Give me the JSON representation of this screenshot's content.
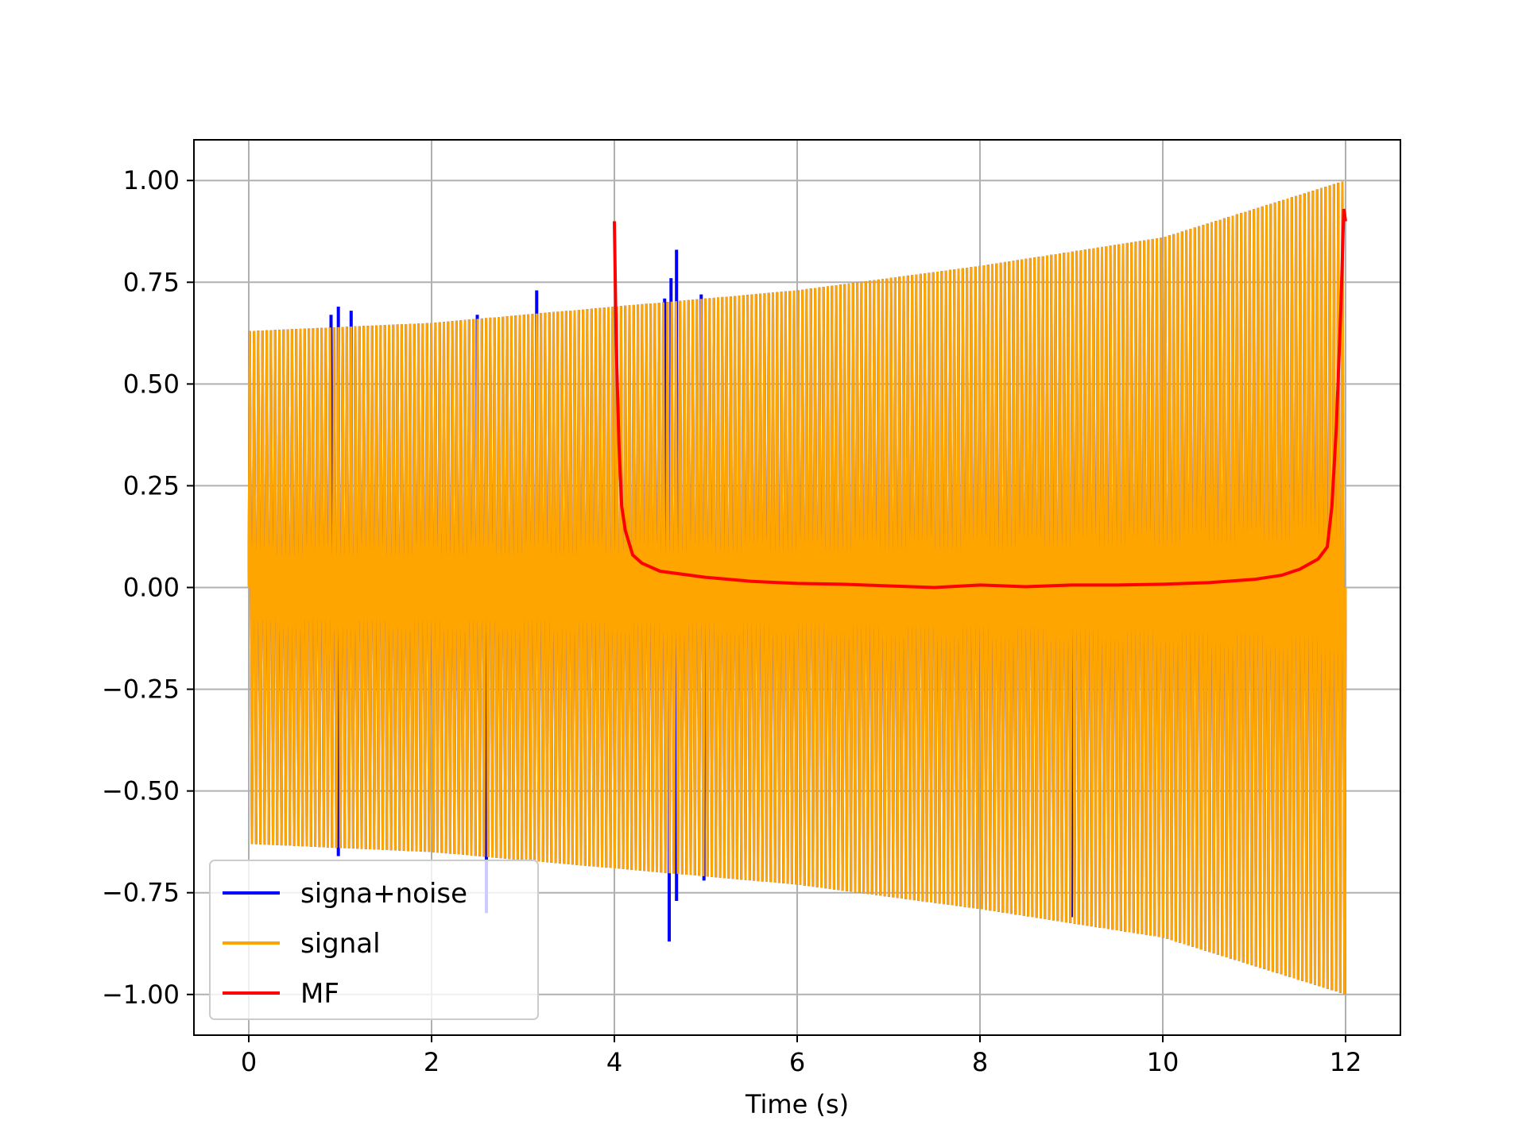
{
  "chart_data": {
    "type": "line",
    "title": "",
    "xlabel": "Time (s)",
    "ylabel": "",
    "xlim": [
      -0.6,
      12.6
    ],
    "ylim": [
      -1.1,
      1.1
    ],
    "xticks": [
      0,
      2,
      4,
      6,
      8,
      10,
      12
    ],
    "xtick_labels": [
      "0",
      "2",
      "4",
      "6",
      "8",
      "10",
      "12"
    ],
    "yticks": [
      1.0,
      0.75,
      0.5,
      0.25,
      0.0,
      -0.25,
      -0.5,
      -0.75,
      -1.0
    ],
    "ytick_labels": [
      "1.00",
      "0.75",
      "0.50",
      "0.25",
      "0.00",
      "−0.25",
      "−0.50",
      "−0.75",
      "−1.00"
    ],
    "grid": true,
    "legend_position": "lower-left",
    "series": [
      {
        "name": "signa+noise",
        "color": "#0000ff",
        "style": "dense oscillation",
        "x_range": [
          0,
          12
        ],
        "amplitude_envelope": [
          [
            0,
            0.63
          ],
          [
            2,
            0.65
          ],
          [
            4,
            0.69
          ],
          [
            6,
            0.73
          ],
          [
            8,
            0.79
          ],
          [
            10,
            0.86
          ],
          [
            12,
            1.0
          ]
        ],
        "spikes": [
          [
            0.9,
            0.67
          ],
          [
            0.98,
            0.69
          ],
          [
            1.12,
            0.68
          ],
          [
            2.5,
            0.67
          ],
          [
            3.15,
            0.73
          ],
          [
            4.55,
            0.71
          ],
          [
            4.62,
            0.76
          ],
          [
            4.68,
            0.83
          ],
          [
            4.95,
            0.72
          ],
          [
            2.6,
            -0.8
          ],
          [
            4.6,
            -0.87
          ],
          [
            4.68,
            -0.77
          ],
          [
            0.98,
            -0.66
          ],
          [
            4.98,
            -0.72
          ],
          [
            9.0,
            -0.81
          ]
        ]
      },
      {
        "name": "signal",
        "color": "#ffa500",
        "style": "dense oscillation",
        "x_range": [
          0,
          12
        ],
        "amplitude_envelope": [
          [
            0,
            0.63
          ],
          [
            2,
            0.65
          ],
          [
            4,
            0.69
          ],
          [
            6,
            0.73
          ],
          [
            8,
            0.79
          ],
          [
            10,
            0.86
          ],
          [
            12,
            1.0
          ]
        ]
      },
      {
        "name": "MF",
        "color": "#ff0000",
        "style": "line",
        "points": [
          [
            4.0,
            0.9
          ],
          [
            4.02,
            0.6
          ],
          [
            4.05,
            0.35
          ],
          [
            4.08,
            0.2
          ],
          [
            4.12,
            0.14
          ],
          [
            4.2,
            0.08
          ],
          [
            4.3,
            0.06
          ],
          [
            4.5,
            0.04
          ],
          [
            5.0,
            0.025
          ],
          [
            5.5,
            0.015
          ],
          [
            6.0,
            0.01
          ],
          [
            6.5,
            0.008
          ],
          [
            7.0,
            0.004
          ],
          [
            7.5,
            0.0
          ],
          [
            8.0,
            0.006
          ],
          [
            8.5,
            0.002
          ],
          [
            9.0,
            0.006
          ],
          [
            9.5,
            0.006
          ],
          [
            10.0,
            0.008
          ],
          [
            10.5,
            0.012
          ],
          [
            11.0,
            0.02
          ],
          [
            11.3,
            0.03
          ],
          [
            11.5,
            0.045
          ],
          [
            11.7,
            0.07
          ],
          [
            11.8,
            0.1
          ],
          [
            11.85,
            0.2
          ],
          [
            11.9,
            0.4
          ],
          [
            11.95,
            0.7
          ],
          [
            11.98,
            0.93
          ],
          [
            12.0,
            0.9
          ]
        ]
      }
    ]
  }
}
